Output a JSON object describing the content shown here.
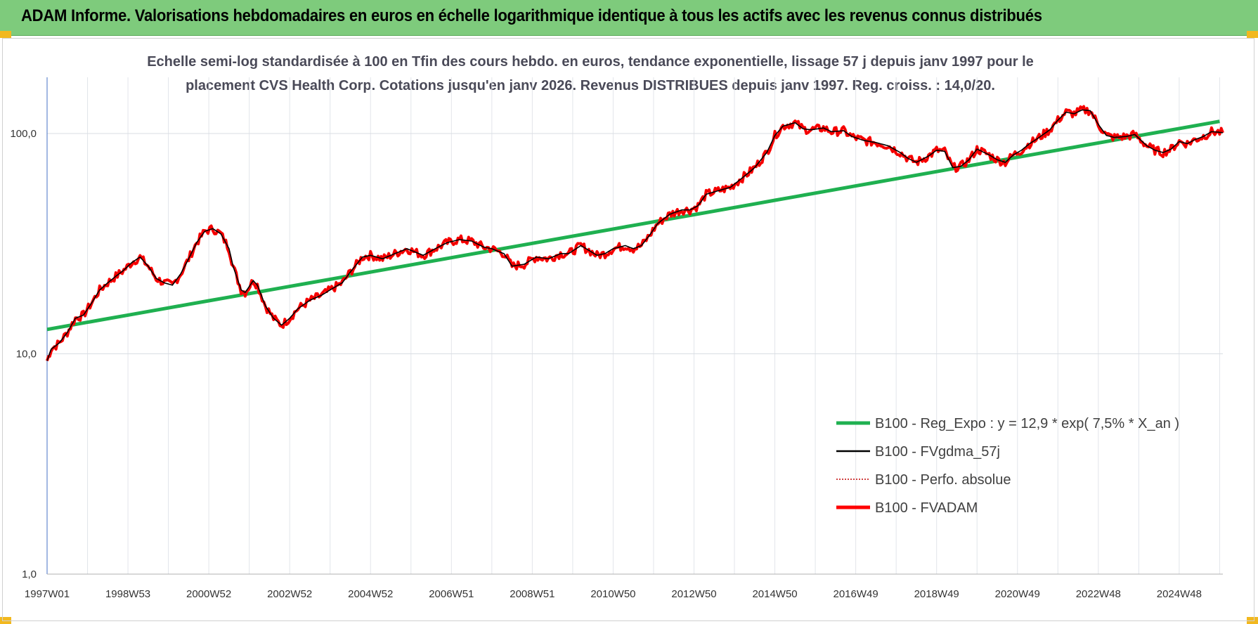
{
  "header": {
    "title": "ADAM Informe. Valorisations hebdomadaires en euros en échelle logarithmique identique à tous les actifs avec les revenus connus distribués"
  },
  "chart_data": {
    "type": "line",
    "title_line1": "Echelle semi-log standardisée à 100 en Tfin des cours hebdo. en euros, tendance exponentielle, lissage 57 j depuis janv 1997 pour le",
    "title_line2": "placement CVS Health Corp. Cotations jusqu'en janv 2026. Revenus DISTRIBUES depuis janv 1997. Reg. croiss. : 14,0/20.",
    "y_scale": "log",
    "ylim": [
      1,
      180
    ],
    "y_ticks": [
      {
        "value": 1,
        "label": "1,0"
      },
      {
        "value": 10,
        "label": "10,0"
      },
      {
        "value": 100,
        "label": "100,0"
      }
    ],
    "x_range": [
      1997.0,
      2026.08
    ],
    "x_ticks": [
      {
        "year": 1997.0,
        "label": "1997W01"
      },
      {
        "year": 1999.0,
        "label": "1998W53"
      },
      {
        "year": 2001.0,
        "label": "2000W52"
      },
      {
        "year": 2003.0,
        "label": "2002W52"
      },
      {
        "year": 2005.0,
        "label": "2004W52"
      },
      {
        "year": 2007.0,
        "label": "2006W51"
      },
      {
        "year": 2009.0,
        "label": "2008W51"
      },
      {
        "year": 2011.0,
        "label": "2010W50"
      },
      {
        "year": 2013.0,
        "label": "2012W50"
      },
      {
        "year": 2015.0,
        "label": "2014W50"
      },
      {
        "year": 2017.0,
        "label": "2016W49"
      },
      {
        "year": 2019.0,
        "label": "2018W49"
      },
      {
        "year": 2021.0,
        "label": "2020W49"
      },
      {
        "year": 2023.0,
        "label": "2022W48"
      },
      {
        "year": 2025.0,
        "label": "2024W48"
      }
    ],
    "grid": true,
    "legend_position": "bottom-right",
    "regression": {
      "a": 12.9,
      "rate": 0.075
    },
    "series": [
      {
        "name": "B100 - Reg_Expo : y = 12,9 * exp( 7,5% *  X_an )",
        "color": "#1fb050",
        "style": "solid",
        "kind": "regression"
      },
      {
        "name": "B100 - FVgdma_57j",
        "color": "#000000",
        "style": "solid",
        "kind": "smooth"
      },
      {
        "name": "B100 - Perfo. absolue",
        "color": "#c00000",
        "style": "dotted",
        "kind": "perf"
      },
      {
        "name": "B100 - FVADAM",
        "color": "#ff0000",
        "style": "solid",
        "kind": "main"
      }
    ],
    "fvadam_points": [
      [
        1997.0,
        9.3
      ],
      [
        1997.1,
        10.5
      ],
      [
        1997.3,
        11.2
      ],
      [
        1997.5,
        12.5
      ],
      [
        1997.7,
        14.5
      ],
      [
        1997.9,
        15.0
      ],
      [
        1998.1,
        17.0
      ],
      [
        1998.3,
        19.5
      ],
      [
        1998.5,
        21.0
      ],
      [
        1998.7,
        22.5
      ],
      [
        1998.9,
        24.0
      ],
      [
        1999.1,
        26.0
      ],
      [
        1999.3,
        27.5
      ],
      [
        1999.5,
        25.0
      ],
      [
        1999.7,
        22.0
      ],
      [
        1999.9,
        21.0
      ],
      [
        2000.1,
        20.5
      ],
      [
        2000.3,
        23.0
      ],
      [
        2000.5,
        27.0
      ],
      [
        2000.7,
        32.0
      ],
      [
        2000.9,
        36.0
      ],
      [
        2001.1,
        37.0
      ],
      [
        2001.3,
        35.0
      ],
      [
        2001.5,
        30.0
      ],
      [
        2001.6,
        25.0
      ],
      [
        2001.8,
        19.5
      ],
      [
        2001.9,
        19.0
      ],
      [
        2002.1,
        21.5
      ],
      [
        2002.2,
        20.5
      ],
      [
        2002.4,
        16.5
      ],
      [
        2002.6,
        14.5
      ],
      [
        2002.8,
        13.5
      ],
      [
        2003.0,
        14.5
      ],
      [
        2003.2,
        16.0
      ],
      [
        2003.5,
        17.5
      ],
      [
        2003.8,
        18.5
      ],
      [
        2004.0,
        19.5
      ],
      [
        2004.3,
        21.0
      ],
      [
        2004.5,
        23.5
      ],
      [
        2004.8,
        27.5
      ],
      [
        2005.0,
        28.0
      ],
      [
        2005.3,
        27.0
      ],
      [
        2005.6,
        28.5
      ],
      [
        2005.9,
        30.0
      ],
      [
        2006.1,
        29.0
      ],
      [
        2006.3,
        28.0
      ],
      [
        2006.6,
        30.0
      ],
      [
        2006.9,
        32.0
      ],
      [
        2007.2,
        33.0
      ],
      [
        2007.5,
        32.5
      ],
      [
        2007.8,
        30.5
      ],
      [
        2008.0,
        30.0
      ],
      [
        2008.3,
        28.5
      ],
      [
        2008.5,
        25.0
      ],
      [
        2008.8,
        25.5
      ],
      [
        2009.1,
        27.5
      ],
      [
        2009.4,
        27.0
      ],
      [
        2009.7,
        28.5
      ],
      [
        2009.9,
        28.5
      ],
      [
        2010.2,
        31.0
      ],
      [
        2010.4,
        29.5
      ],
      [
        2010.6,
        28.0
      ],
      [
        2010.8,
        28.5
      ],
      [
        2011.0,
        30.0
      ],
      [
        2011.3,
        31.0
      ],
      [
        2011.5,
        30.0
      ],
      [
        2011.7,
        31.0
      ],
      [
        2011.9,
        34.5
      ],
      [
        2012.1,
        39.0
      ],
      [
        2012.4,
        43.0
      ],
      [
        2012.7,
        45.0
      ],
      [
        2012.9,
        45.0
      ],
      [
        2013.1,
        47.0
      ],
      [
        2013.3,
        53.0
      ],
      [
        2013.6,
        55.0
      ],
      [
        2013.9,
        57.0
      ],
      [
        2014.2,
        63.0
      ],
      [
        2014.5,
        70.0
      ],
      [
        2014.8,
        82.0
      ],
      [
        2015.0,
        98.0
      ],
      [
        2015.2,
        108.0
      ],
      [
        2015.5,
        112.0
      ],
      [
        2015.7,
        105.0
      ],
      [
        2015.9,
        104.0
      ],
      [
        2016.2,
        106.0
      ],
      [
        2016.4,
        102.0
      ],
      [
        2016.7,
        103.0
      ],
      [
        2016.9,
        97.0
      ],
      [
        2017.2,
        93.0
      ],
      [
        2017.5,
        91.0
      ],
      [
        2017.8,
        88.0
      ],
      [
        2018.1,
        82.0
      ],
      [
        2018.3,
        77.0
      ],
      [
        2018.5,
        74.0
      ],
      [
        2018.8,
        79.0
      ],
      [
        2019.0,
        84.0
      ],
      [
        2019.2,
        83.0
      ],
      [
        2019.4,
        70.0
      ],
      [
        2019.6,
        71.0
      ],
      [
        2019.8,
        76.0
      ],
      [
        2020.0,
        85.0
      ],
      [
        2020.3,
        80.0
      ],
      [
        2020.5,
        76.0
      ],
      [
        2020.7,
        74.0
      ],
      [
        2020.9,
        80.0
      ],
      [
        2021.1,
        84.0
      ],
      [
        2021.3,
        90.0
      ],
      [
        2021.5,
        95.0
      ],
      [
        2021.8,
        104.0
      ],
      [
        2022.0,
        115.0
      ],
      [
        2022.2,
        125.0
      ],
      [
        2022.4,
        123.0
      ],
      [
        2022.6,
        128.0
      ],
      [
        2022.8,
        127.0
      ],
      [
        2023.0,
        110.0
      ],
      [
        2023.2,
        98.0
      ],
      [
        2023.4,
        96.0
      ],
      [
        2023.7,
        97.0
      ],
      [
        2023.9,
        99.0
      ],
      [
        2024.2,
        88.0
      ],
      [
        2024.4,
        84.0
      ],
      [
        2024.6,
        82.0
      ],
      [
        2024.8,
        85.0
      ],
      [
        2025.0,
        92.0
      ],
      [
        2025.2,
        90.0
      ],
      [
        2025.4,
        94.0
      ],
      [
        2025.6,
        97.0
      ],
      [
        2025.8,
        102.0
      ],
      [
        2026.08,
        101.0
      ]
    ]
  }
}
